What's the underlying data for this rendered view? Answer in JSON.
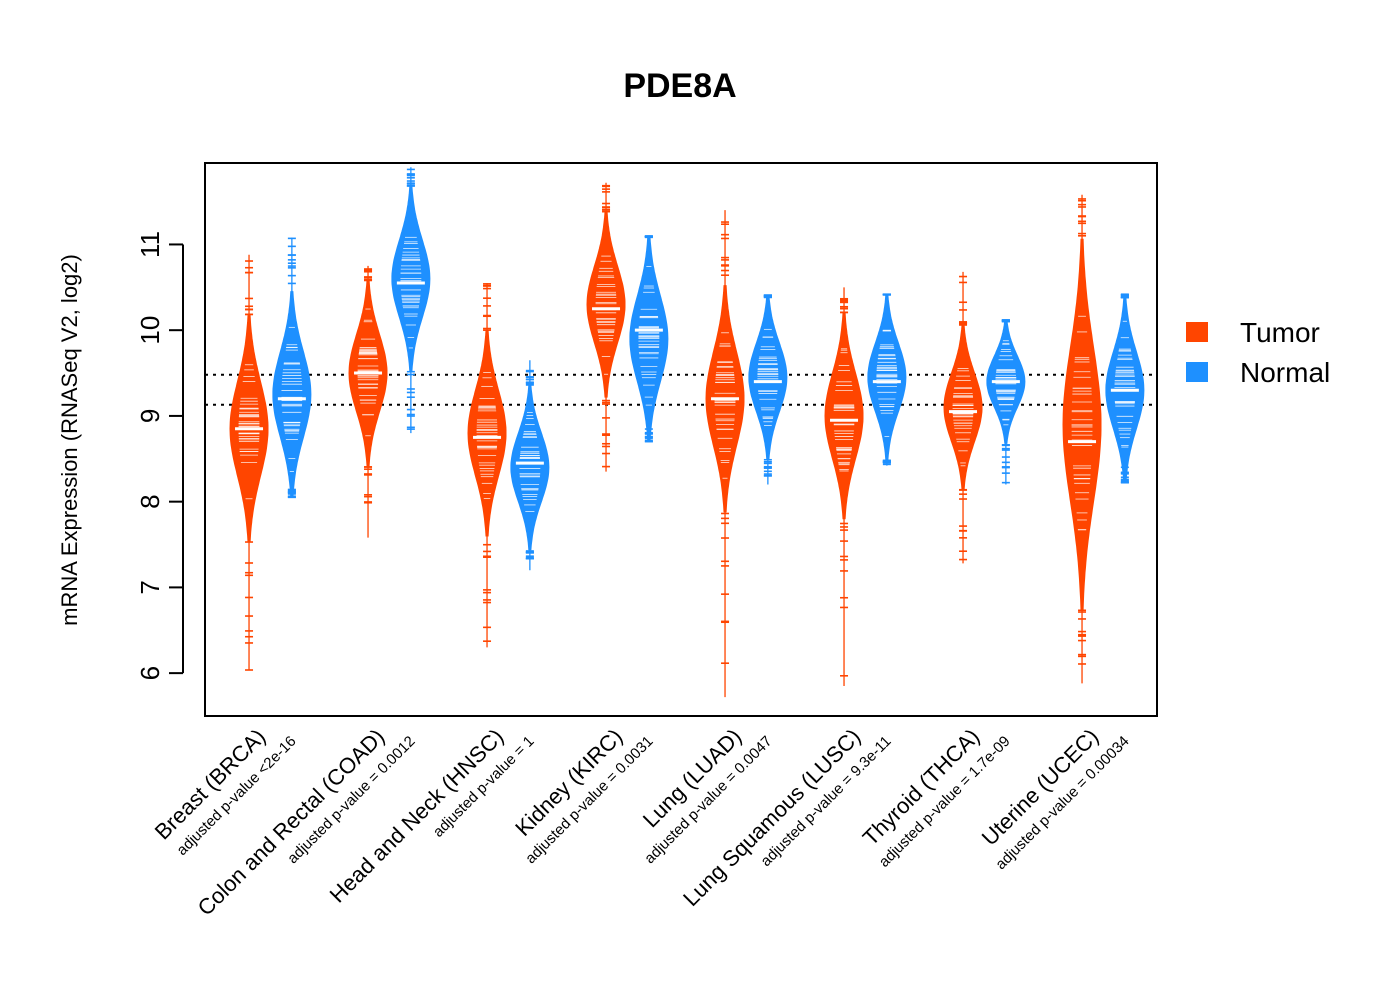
{
  "chart_data": {
    "type": "beanplot",
    "title": "PDE8A",
    "xlabel": "",
    "ylabel": "mRNA Expression (RNASeq V2, log2)",
    "ylim": [
      5.5,
      11.95
    ],
    "yticks": [
      6,
      7,
      8,
      9,
      10,
      11
    ],
    "reference_lines": [
      9.13,
      9.48
    ],
    "grid": false,
    "legend": {
      "placement": "right",
      "entries": [
        {
          "name": "Tumor",
          "color": "#FF4500"
        },
        {
          "name": "Normal",
          "color": "#1E90FF"
        }
      ]
    },
    "series": [
      {
        "name": "Tumor",
        "color": "#FF4500"
      },
      {
        "name": "Normal",
        "color": "#1E90FF"
      }
    ],
    "categories": [
      {
        "label": "Breast (BRCA)",
        "pvalue": "adjusted p-value <2e-16",
        "tumor": {
          "min": 6.03,
          "max": 10.88,
          "center": 8.85,
          "median": 8.85,
          "spread": 0.55
        },
        "normal": {
          "min": 8.15,
          "max": 11.08,
          "center": 9.25,
          "median": 9.2,
          "spread": 0.5
        }
      },
      {
        "label": "Colon and Rectal (COAD)",
        "pvalue": "adjusted p-value = 0.0012",
        "tumor": {
          "min": 7.58,
          "max": 10.75,
          "center": 9.5,
          "median": 9.5,
          "spread": 0.45
        },
        "normal": {
          "min": 8.8,
          "max": 11.9,
          "center": 10.6,
          "median": 10.55,
          "spread": 0.45
        }
      },
      {
        "label": "Head and Neck (HNSC)",
        "pvalue": "adjusted p-value = 1",
        "tumor": {
          "min": 6.3,
          "max": 10.55,
          "center": 8.8,
          "median": 8.75,
          "spread": 0.5
        },
        "normal": {
          "min": 7.2,
          "max": 9.65,
          "center": 8.4,
          "median": 8.45,
          "spread": 0.4
        }
      },
      {
        "label": "Kidney (KIRC)",
        "pvalue": "adjusted p-value = 0.0031",
        "tumor": {
          "min": 8.35,
          "max": 11.72,
          "center": 10.3,
          "median": 10.25,
          "spread": 0.45
        },
        "normal": {
          "min": 8.9,
          "max": 11.08,
          "center": 9.9,
          "median": 10.0,
          "spread": 0.5
        }
      },
      {
        "label": "Lung (LUAD)",
        "pvalue": "adjusted p-value = 0.0047",
        "tumor": {
          "min": 5.72,
          "max": 11.4,
          "center": 9.2,
          "median": 9.2,
          "spread": 0.55
        },
        "normal": {
          "min": 8.2,
          "max": 10.38,
          "center": 9.45,
          "median": 9.4,
          "spread": 0.4
        }
      },
      {
        "label": "Lung Squamous (LUSC)",
        "pvalue": "adjusted p-value = 9.3e-11",
        "tumor": {
          "min": 5.85,
          "max": 10.5,
          "center": 9.0,
          "median": 8.95,
          "spread": 0.5
        },
        "normal": {
          "min": 8.42,
          "max": 10.42,
          "center": 9.45,
          "median": 9.4,
          "spread": 0.4
        }
      },
      {
        "label": "Thyroid (THCA)",
        "pvalue": "adjusted p-value = 1.7e-09",
        "tumor": {
          "min": 7.28,
          "max": 10.68,
          "center": 9.1,
          "median": 9.05,
          "spread": 0.4
        },
        "normal": {
          "min": 8.2,
          "max": 10.1,
          "center": 9.4,
          "median": 9.4,
          "spread": 0.3
        }
      },
      {
        "label": "Uterine (UCEC)",
        "pvalue": "adjusted p-value = 0.00034",
        "tumor": {
          "min": 5.88,
          "max": 11.58,
          "center": 8.9,
          "median": 8.7,
          "spread": 0.9
        },
        "normal": {
          "min": 8.45,
          "max": 10.42,
          "center": 9.3,
          "median": 9.3,
          "spread": 0.45
        }
      }
    ]
  }
}
